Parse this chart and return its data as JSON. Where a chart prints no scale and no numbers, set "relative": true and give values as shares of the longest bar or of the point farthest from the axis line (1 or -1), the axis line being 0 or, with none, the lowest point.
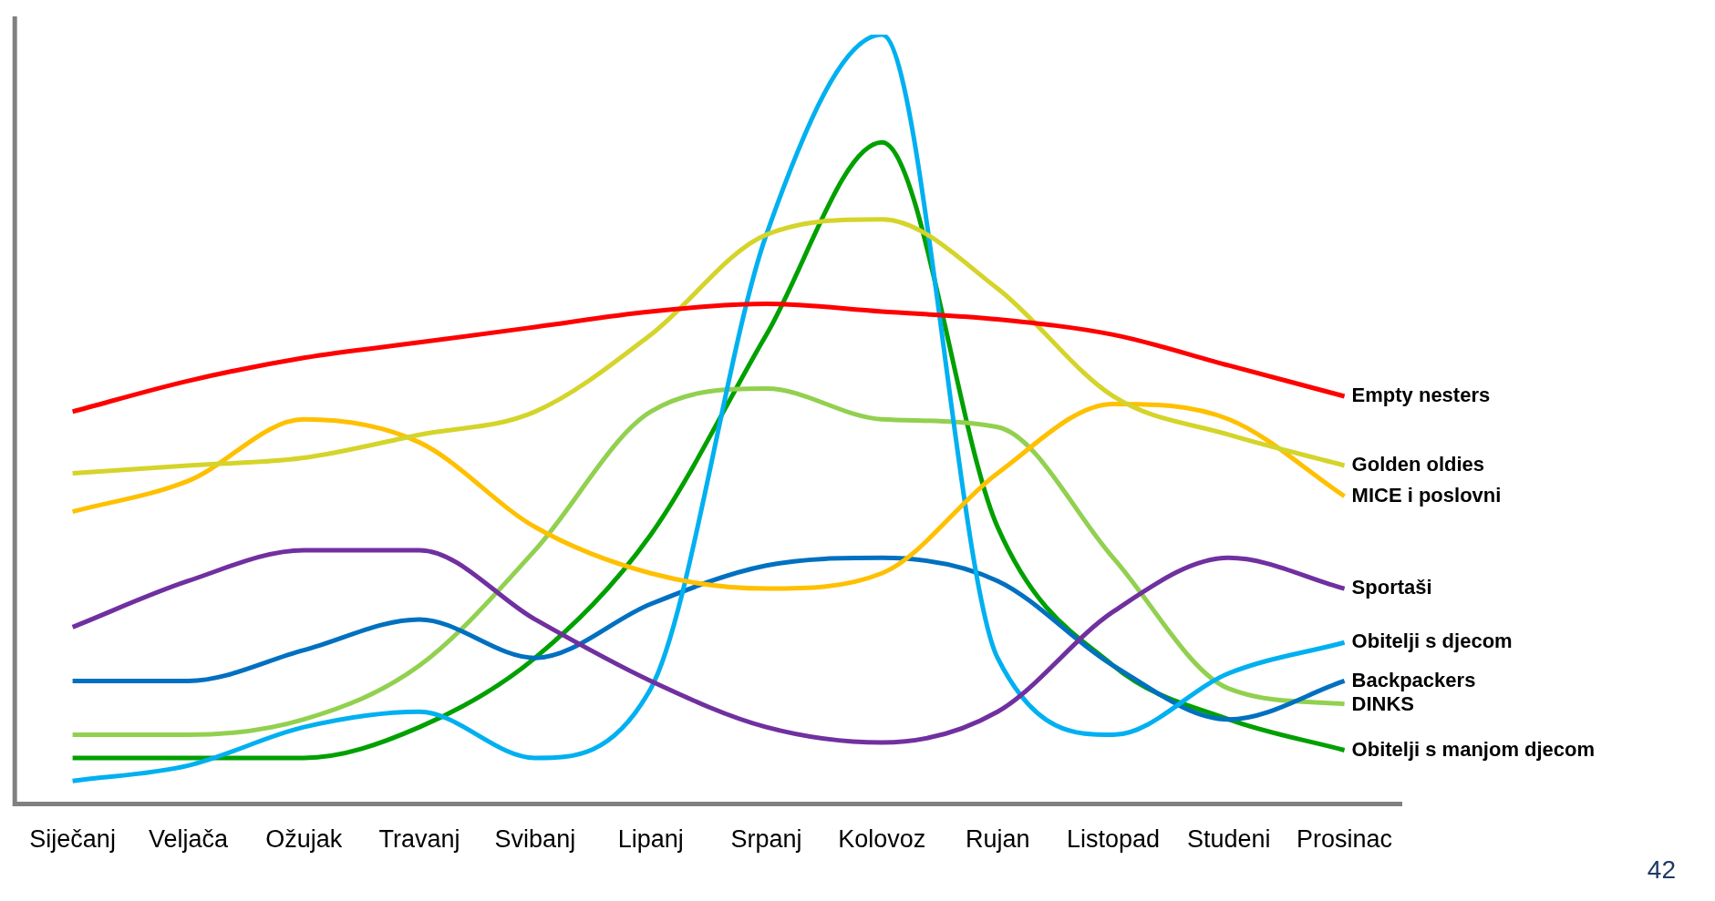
{
  "chart_data": {
    "type": "line",
    "relative": true,
    "grid": false,
    "legend": false,
    "marker": "none",
    "line_style": "solid",
    "categories": [
      "Siječanj",
      "Veljača",
      "Ožujak",
      "Travanj",
      "Svibanj",
      "Lipanj",
      "Srpanj",
      "Kolovoz",
      "Rujan",
      "Listopad",
      "Studeni",
      "Prosinac"
    ],
    "series": [
      {
        "name": "Empty nesters",
        "color": "#ff0000",
        "values": [
          0.51,
          0.55,
          0.58,
          0.6,
          0.62,
          0.64,
          0.65,
          0.64,
          0.63,
          0.61,
          0.57,
          0.53
        ]
      },
      {
        "name": "Golden oldies",
        "color": "#d4d42a",
        "values": [
          0.43,
          0.44,
          0.45,
          0.48,
          0.51,
          0.61,
          0.74,
          0.76,
          0.67,
          0.53,
          0.48,
          0.44
        ]
      },
      {
        "name": "MICE i poslovni",
        "color": "#ffc000",
        "values": [
          0.38,
          0.42,
          0.5,
          0.47,
          0.36,
          0.3,
          0.28,
          0.3,
          0.43,
          0.52,
          0.5,
          0.4
        ]
      },
      {
        "name": "Sportaši",
        "color": "#7030a0",
        "values": [
          0.23,
          0.29,
          0.33,
          0.33,
          0.24,
          0.16,
          0.1,
          0.08,
          0.12,
          0.25,
          0.32,
          0.28
        ]
      },
      {
        "name": "Obitelji s djecom",
        "color": "#00b0f0",
        "values": [
          0.03,
          0.05,
          0.1,
          0.12,
          0.06,
          0.15,
          0.74,
          1,
          0.19,
          0.09,
          0.17,
          0.21
        ]
      },
      {
        "name": "Backpackers",
        "color": "#0070c0",
        "values": [
          0.16,
          0.16,
          0.2,
          0.24,
          0.19,
          0.26,
          0.31,
          0.32,
          0.29,
          0.18,
          0.11,
          0.16
        ]
      },
      {
        "name": "DINKS",
        "color": "#92d050",
        "values": [
          0.09,
          0.09,
          0.11,
          0.18,
          0.33,
          0.51,
          0.54,
          0.5,
          0.49,
          0.32,
          0.15,
          0.13
        ]
      },
      {
        "name": "Obitelji s manjom djecom",
        "color": "#00a000",
        "values": [
          0.06,
          0.06,
          0.06,
          0.1,
          0.19,
          0.35,
          0.61,
          0.86,
          0.36,
          0.18,
          0.11,
          0.07
        ]
      }
    ],
    "annotations": [
      "42"
    ]
  }
}
